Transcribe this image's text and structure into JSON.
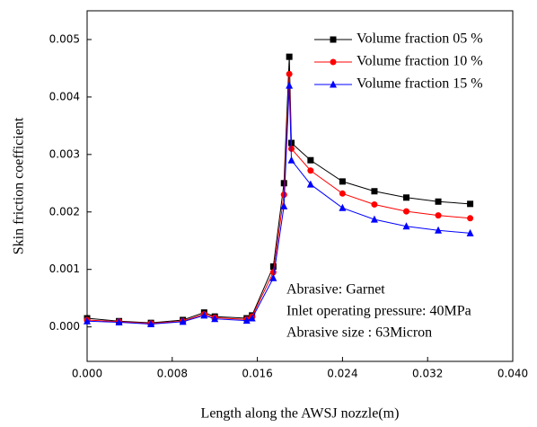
{
  "chart_data": {
    "type": "line",
    "xlabel": "Length along the AWSJ nozzle(m)",
    "ylabel": "Skin friction coefficient",
    "xlim": [
      0,
      0.04
    ],
    "ylim": [
      -0.0006,
      0.0055
    ],
    "xticks": [
      {
        "value": 0,
        "label": "0.000"
      },
      {
        "value": 0.008,
        "label": "0.008"
      },
      {
        "value": 0.016,
        "label": "0.016"
      },
      {
        "value": 0.024,
        "label": "0.024"
      },
      {
        "value": 0.032,
        "label": "0.032"
      },
      {
        "value": 0.04,
        "label": "0.040"
      }
    ],
    "yticks": [
      {
        "value": 0,
        "label": "0.000"
      },
      {
        "value": 0.001,
        "label": "0.001"
      },
      {
        "value": 0.002,
        "label": "0.002"
      },
      {
        "value": 0.003,
        "label": "0.003"
      },
      {
        "value": 0.004,
        "label": "0.004"
      },
      {
        "value": 0.005,
        "label": "0.005"
      }
    ],
    "legend": "upper right",
    "x": [
      0,
      0.003,
      0.006,
      0.009,
      0.011,
      0.012,
      0.015,
      0.0155,
      0.0175,
      0.0185,
      0.019,
      0.0192,
      0.021,
      0.024,
      0.027,
      0.03,
      0.033,
      0.036
    ],
    "series": [
      {
        "name": "Volume fraction 05 %",
        "color": "#000000",
        "marker": "square",
        "values": [
          0.00015,
          0.0001,
          7e-05,
          0.00012,
          0.00025,
          0.00018,
          0.00015,
          0.0002,
          0.00105,
          0.0025,
          0.0047,
          0.0032,
          0.0029,
          0.00253,
          0.00236,
          0.00225,
          0.00218,
          0.00214
        ]
      },
      {
        "name": "Volume fraction 10 %",
        "color": "#ff0000",
        "marker": "circle",
        "values": [
          0.00012,
          9e-05,
          6e-05,
          0.0001,
          0.00022,
          0.00016,
          0.00013,
          0.00018,
          0.00095,
          0.0023,
          0.0044,
          0.0031,
          0.00272,
          0.00232,
          0.00213,
          0.00201,
          0.00194,
          0.00189
        ]
      },
      {
        "name": "Volume fraction 15 %",
        "color": "#0000ff",
        "marker": "triangle",
        "values": [
          0.0001,
          8e-05,
          5e-05,
          9e-05,
          0.0002,
          0.00014,
          0.00011,
          0.00015,
          0.00085,
          0.0021,
          0.0042,
          0.0029,
          0.00248,
          0.00207,
          0.00187,
          0.00175,
          0.00168,
          0.00163
        ]
      }
    ],
    "annotations": [
      "Abrasive: Garnet",
      "Inlet operating pressure: 40MPa",
      "Abrasive size : 63Micron"
    ]
  }
}
